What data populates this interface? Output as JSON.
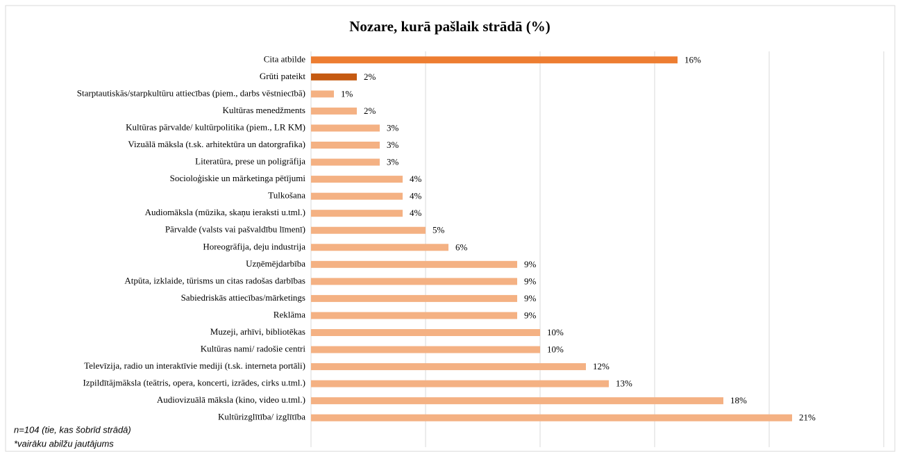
{
  "chart_data": {
    "type": "barh",
    "title": "Nozare, kurā pašlaik strādā (%)",
    "categories": [
      "Cita atbilde",
      "Grūti pateikt",
      "Starptautiskās/starpkultūru attiecības (piem., darbs vēstniecībā)",
      "Kultūras menedžments",
      "Kultūras pārvalde/ kultūrpolitika (piem., LR KM)",
      "Vizuālā māksla (t.sk. arhitektūra un datorgrafika)",
      "Literatūra, prese un poligrāfija",
      "Socioloģiskie un mārketinga pētījumi",
      "Tulkošana",
      "Audiomāksla (mūzika, skaņu ieraksti u.tml.)",
      "Pārvalde (valsts vai pašvaldību līmenī)",
      "Horeogrāfija, deju industrija",
      "Uzņēmējdarbība",
      "Atpūta, izklaide, tūrisms un citas radošas darbības",
      "Sabiedriskās attiecības/mārketings",
      "Reklāma",
      "Muzeji, arhīvi, bibliotēkas",
      "Kultūras nami/ radošie centri",
      "Televīzija, radio un interaktīvie mediji (t.sk. interneta portāli)",
      "Izpildītājmāksla (teātris, opera, koncerti, izrādes, cirks u.tml.)",
      "Audiovizuālā māksla (kino, video u.tml.)",
      "Kultūrizglītība/ izglītība"
    ],
    "values": [
      16,
      2,
      1,
      2,
      3,
      3,
      3,
      4,
      4,
      4,
      5,
      6,
      9,
      9,
      9,
      9,
      10,
      10,
      12,
      13,
      18,
      21
    ],
    "value_labels": [
      "16%",
      "2%",
      "1%",
      "2%",
      "3%",
      "3%",
      "3%",
      "4%",
      "4%",
      "4%",
      "5%",
      "6%",
      "9%",
      "9%",
      "9%",
      "9%",
      "10%",
      "10%",
      "12%",
      "13%",
      "18%",
      "21%"
    ],
    "colors": [
      "#ed7d31",
      "#c55a11",
      "#f4b183",
      "#f4b183",
      "#f4b183",
      "#f4b183",
      "#f4b183",
      "#f4b183",
      "#f4b183",
      "#f4b183",
      "#f4b183",
      "#f4b183",
      "#f4b183",
      "#f4b183",
      "#f4b183",
      "#f4b183",
      "#f4b183",
      "#f4b183",
      "#f4b183",
      "#f4b183",
      "#f4b183",
      "#f4b183"
    ],
    "xlim": [
      0,
      25
    ],
    "xticks": [
      0,
      5,
      10,
      15,
      20,
      25
    ],
    "grid": true,
    "notes": [
      "n=104 (tie, kas šobrīd strādā)",
      "*vairāku abilžu jautājums"
    ]
  }
}
